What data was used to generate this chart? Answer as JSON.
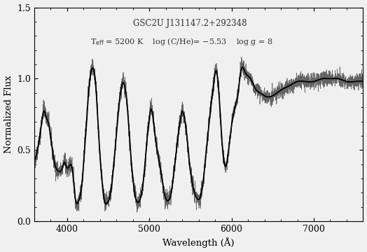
{
  "title_line1": "GSC2U J131147.2+292348",
  "xlabel": "Wavelength (Å)",
  "ylabel": "Normalized Flux",
  "xlim": [
    3600,
    7600
  ],
  "ylim": [
    0.0,
    1.5
  ],
  "yticks": [
    0.0,
    0.5,
    1.0,
    1.5
  ],
  "xticks": [
    4000,
    5000,
    6000,
    7000
  ],
  "obs_color": "#555555",
  "model_color": "#000000",
  "background_color": "#f0f0f0",
  "obs_lw": 0.5,
  "model_lw": 1.3
}
